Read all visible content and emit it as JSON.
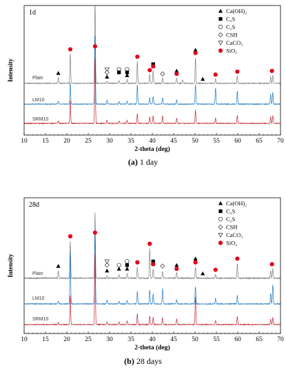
{
  "chart_data": [
    {
      "type": "line",
      "panel_tag": "1d",
      "caption_bold": "(a)",
      "caption_rest": " 1 day",
      "xlabel": "2-theta (deg)",
      "ylabel": "Intensity",
      "xlim": [
        10,
        70
      ],
      "xticks": [
        10,
        15,
        20,
        25,
        30,
        35,
        40,
        45,
        50,
        55,
        60,
        65,
        70
      ],
      "legend": [
        {
          "symbol": "triangle",
          "label": "Ca(OH)₂"
        },
        {
          "symbol": "square",
          "label": "C₃S"
        },
        {
          "symbol": "circle-open",
          "label": "C₂S"
        },
        {
          "symbol": "diamond-open",
          "label": "CSH"
        },
        {
          "symbol": "triangle-down-open",
          "label": "CaCO₃"
        },
        {
          "symbol": "circle-red",
          "label": "SiO₂"
        }
      ],
      "series": [
        {
          "name": "Plain",
          "color": "#7f7f7f",
          "peaks": [
            [
              18.0,
              0.08
            ],
            [
              20.8,
              0.4
            ],
            [
              26.6,
              1.1
            ],
            [
              29.4,
              0.03
            ],
            [
              32.2,
              0.04
            ],
            [
              34.1,
              0.05
            ],
            [
              36.5,
              0.3
            ],
            [
              39.4,
              0.12
            ],
            [
              40.2,
              0.17
            ],
            [
              42.4,
              0.07
            ],
            [
              45.7,
              0.07
            ],
            [
              47.1,
              0.05
            ],
            [
              50.1,
              0.35
            ],
            [
              54.8,
              0.06
            ],
            [
              59.9,
              0.1
            ],
            [
              67.7,
              0.09
            ],
            [
              68.2,
              0.11
            ]
          ]
        },
        {
          "name": "LM10",
          "color": "#1f77c4",
          "peaks": [
            [
              18.0,
              0.05
            ],
            [
              20.8,
              0.33
            ],
            [
              26.6,
              1.05
            ],
            [
              29.4,
              0.06
            ],
            [
              32.2,
              0.04
            ],
            [
              34.1,
              0.05
            ],
            [
              36.5,
              0.3
            ],
            [
              39.4,
              0.1
            ],
            [
              40.2,
              0.12
            ],
            [
              42.4,
              0.1
            ],
            [
              45.7,
              0.06
            ],
            [
              50.1,
              0.3
            ],
            [
              54.8,
              0.25
            ],
            [
              59.9,
              0.2
            ],
            [
              67.7,
              0.15
            ],
            [
              68.2,
              0.18
            ]
          ]
        },
        {
          "name": "SRM10",
          "color": "#c1272d",
          "peaks": [
            [
              18.0,
              0.04
            ],
            [
              20.8,
              0.35
            ],
            [
              26.6,
              1.0
            ],
            [
              29.4,
              0.05
            ],
            [
              32.2,
              0.04
            ],
            [
              34.1,
              0.05
            ],
            [
              36.5,
              0.15
            ],
            [
              39.4,
              0.1
            ],
            [
              40.2,
              0.12
            ],
            [
              42.4,
              0.12
            ],
            [
              45.7,
              0.08
            ],
            [
              50.1,
              0.2
            ],
            [
              54.8,
              0.08
            ],
            [
              59.9,
              0.12
            ],
            [
              67.7,
              0.1
            ],
            [
              68.2,
              0.12
            ]
          ]
        }
      ],
      "markers": [
        {
          "symbol": "triangle",
          "x": 18.0,
          "y": 0.11
        },
        {
          "symbol": "circle-red",
          "x": 20.8,
          "y": 0.43
        },
        {
          "symbol": "circle-red",
          "x": 26.6,
          "y": 0.47
        },
        {
          "symbol": "triangle-down-open",
          "x": 29.4,
          "y": 0.16
        },
        {
          "symbol": "diamond-open",
          "x": 29.4,
          "y": 0.12
        },
        {
          "symbol": "triangle",
          "x": 29.4,
          "y": 0.06
        },
        {
          "symbol": "circle-open",
          "x": 32.2,
          "y": 0.16
        },
        {
          "symbol": "square",
          "x": 32.2,
          "y": 0.12
        },
        {
          "symbol": "circle-open",
          "x": 34.1,
          "y": 0.16
        },
        {
          "symbol": "square",
          "x": 34.1,
          "y": 0.12
        },
        {
          "symbol": "triangle",
          "x": 34.1,
          "y": 0.08
        },
        {
          "symbol": "circle-red",
          "x": 36.5,
          "y": 0.33
        },
        {
          "symbol": "circle-red",
          "x": 39.4,
          "y": 0.15
        },
        {
          "symbol": "square",
          "x": 40.2,
          "y": 0.23
        },
        {
          "symbol": "circle-red",
          "x": 40.2,
          "y": 0.2
        },
        {
          "symbol": "diamond-open",
          "x": 42.4,
          "y": 0.1
        },
        {
          "symbol": "triangle",
          "x": 45.7,
          "y": 0.14
        },
        {
          "symbol": "circle-red",
          "x": 45.7,
          "y": 0.1
        },
        {
          "symbol": "triangle",
          "x": 50.1,
          "y": 0.42
        },
        {
          "symbol": "circle-red",
          "x": 50.1,
          "y": 0.38
        },
        {
          "symbol": "triangle",
          "x": 51.8,
          "y": 0.03
        },
        {
          "symbol": "circle-red",
          "x": 54.8,
          "y": 0.09
        },
        {
          "symbol": "circle-red",
          "x": 59.9,
          "y": 0.13
        },
        {
          "symbol": "circle-red",
          "x": 68.0,
          "y": 0.14
        }
      ]
    },
    {
      "type": "line",
      "panel_tag": "28d",
      "caption_bold": "(b)",
      "caption_rest": " 28 days",
      "xlabel": "2-theta (deg)",
      "ylabel": "Intensity",
      "xlim": [
        10,
        70
      ],
      "xticks": [
        10,
        15,
        20,
        25,
        30,
        35,
        40,
        45,
        50,
        55,
        60,
        65,
        70
      ],
      "legend": [
        {
          "symbol": "triangle",
          "label": "Ca(OH)₂"
        },
        {
          "symbol": "square",
          "label": "C₃S"
        },
        {
          "symbol": "circle-open",
          "label": "C₂S"
        },
        {
          "symbol": "diamond-open",
          "label": "CSH"
        },
        {
          "symbol": "triangle-down-open",
          "label": "CaCO₃"
        },
        {
          "symbol": "circle-red",
          "label": "SiO₂"
        }
      ],
      "series": [
        {
          "name": "Plain",
          "color": "#7f7f7f",
          "peaks": [
            [
              18.0,
              0.08
            ],
            [
              20.8,
              0.4
            ],
            [
              26.6,
              0.7
            ],
            [
              29.4,
              0.03
            ],
            [
              32.2,
              0.04
            ],
            [
              34.1,
              0.05
            ],
            [
              36.5,
              0.12
            ],
            [
              39.4,
              0.32
            ],
            [
              40.2,
              0.1
            ],
            [
              42.4,
              0.08
            ],
            [
              45.7,
              0.06
            ],
            [
              50.1,
              0.12
            ],
            [
              54.8,
              0.04
            ],
            [
              59.9,
              0.16
            ],
            [
              67.7,
              0.08
            ],
            [
              68.2,
              0.1
            ]
          ]
        },
        {
          "name": "LM10",
          "color": "#1f77c4",
          "peaks": [
            [
              18.0,
              0.04
            ],
            [
              20.8,
              0.75
            ],
            [
              26.6,
              1.0
            ],
            [
              29.4,
              0.05
            ],
            [
              32.2,
              0.04
            ],
            [
              34.1,
              0.05
            ],
            [
              36.5,
              0.18
            ],
            [
              39.4,
              0.2
            ],
            [
              40.2,
              0.14
            ],
            [
              42.4,
              0.22
            ],
            [
              45.7,
              0.06
            ],
            [
              50.1,
              0.25
            ],
            [
              54.8,
              0.08
            ],
            [
              59.9,
              0.12
            ],
            [
              67.7,
              0.15
            ],
            [
              68.2,
              0.28
            ]
          ]
        },
        {
          "name": "SRM10",
          "color": "#c1272d",
          "peaks": [
            [
              18.0,
              0.03
            ],
            [
              20.8,
              0.42
            ],
            [
              26.6,
              1.0
            ],
            [
              29.4,
              0.04
            ],
            [
              32.2,
              0.04
            ],
            [
              34.1,
              0.05
            ],
            [
              36.5,
              0.15
            ],
            [
              39.4,
              0.12
            ],
            [
              40.2,
              0.1
            ],
            [
              42.4,
              0.1
            ],
            [
              45.7,
              0.08
            ],
            [
              50.1,
              0.4
            ],
            [
              54.8,
              0.06
            ],
            [
              59.9,
              0.12
            ],
            [
              67.7,
              0.08
            ],
            [
              68.2,
              0.1
            ]
          ]
        }
      ],
      "markers": [
        {
          "symbol": "triangle",
          "x": 18.0,
          "y": 0.11
        },
        {
          "symbol": "circle-red",
          "x": 20.8,
          "y": 0.43
        },
        {
          "symbol": "circle-red",
          "x": 26.6,
          "y": 0.47
        },
        {
          "symbol": "triangle-down-open",
          "x": 29.4,
          "y": 0.16
        },
        {
          "symbol": "diamond-open",
          "x": 29.4,
          "y": 0.12
        },
        {
          "symbol": "triangle",
          "x": 29.4,
          "y": 0.06
        },
        {
          "symbol": "circle-open",
          "x": 32.2,
          "y": 0.12
        },
        {
          "symbol": "triangle",
          "x": 32.2,
          "y": 0.08
        },
        {
          "symbol": "circle-open",
          "x": 34.1,
          "y": 0.16
        },
        {
          "symbol": "square",
          "x": 34.1,
          "y": 0.12
        },
        {
          "symbol": "triangle",
          "x": 34.1,
          "y": 0.08
        },
        {
          "symbol": "circle-red",
          "x": 36.5,
          "y": 0.15
        },
        {
          "symbol": "circle-red",
          "x": 39.4,
          "y": 0.35
        },
        {
          "symbol": "square",
          "x": 40.2,
          "y": 0.16
        },
        {
          "symbol": "circle-red",
          "x": 40.2,
          "y": 0.13
        },
        {
          "symbol": "diamond-open",
          "x": 42.4,
          "y": 0.11
        },
        {
          "symbol": "triangle",
          "x": 45.7,
          "y": 0.12
        },
        {
          "symbol": "circle-red",
          "x": 45.7,
          "y": 0.08
        },
        {
          "symbol": "triangle",
          "x": 50.1,
          "y": 0.19
        },
        {
          "symbol": "circle-red",
          "x": 50.1,
          "y": 0.15
        },
        {
          "symbol": "triangle",
          "x": 51.8,
          "y": 0.03
        },
        {
          "symbol": "circle-red",
          "x": 54.8,
          "y": 0.07
        },
        {
          "symbol": "circle-red",
          "x": 59.9,
          "y": 0.19
        },
        {
          "symbol": "circle-red",
          "x": 68.0,
          "y": 0.13
        }
      ]
    }
  ]
}
